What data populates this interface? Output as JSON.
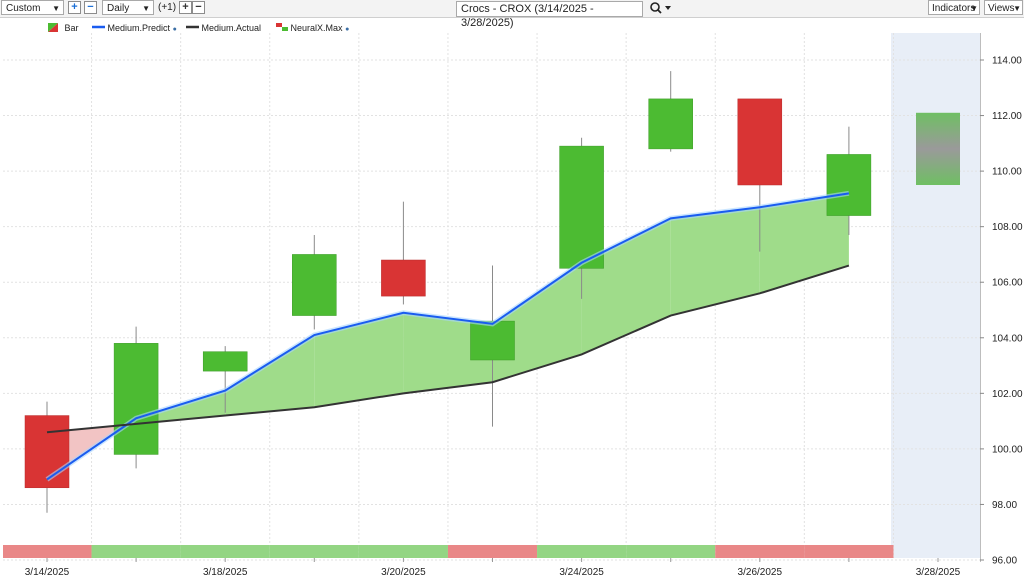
{
  "toolbar": {
    "period_select": "Custom",
    "interval_select": "Daily",
    "offset_label": "(+1)",
    "plus_symbol": "+",
    "minus_symbol": "−",
    "title": "Crocs - CROX (3/14/2025 - 3/28/2025)",
    "indicators_label": "Indicators",
    "views_label": "Views",
    "search_icon": "magnifier-icon",
    "dropdown_icon": "chevron-down-icon"
  },
  "legend": {
    "bar": "Bar",
    "predict": "Medium.Predict",
    "actual": "Medium.Actual",
    "neuralx": "NeuralX.Max"
  },
  "colors": {
    "up": "#4cbb32",
    "down": "#d93434",
    "predict": "#1a5cf0",
    "actual": "#333333",
    "fill_up": "#9fdc8a",
    "fill_down": "#f2c4c4",
    "forecast_bg": "#e8eef7",
    "strip_up": "#93d583",
    "strip_down": "#e98787"
  },
  "chart_data": {
    "type": "candlestick",
    "title": "Crocs - CROX (3/14/2025 - 3/28/2025)",
    "ylim": [
      96,
      115
    ],
    "y_ticks": [
      "96.00",
      "98.00",
      "100.00",
      "102.00",
      "104.00",
      "106.00",
      "108.00",
      "110.00",
      "112.00",
      "114.00"
    ],
    "x_tick_labels": [
      "3/14/2025",
      "3/18/2025",
      "3/20/2025",
      "3/24/2025",
      "3/26/2025",
      "3/28/2025"
    ],
    "candles": [
      {
        "open": 101.2,
        "close": 98.6,
        "high": 101.7,
        "low": 97.7
      },
      {
        "open": 99.8,
        "close": 103.8,
        "high": 104.4,
        "low": 99.3
      },
      {
        "open": 102.8,
        "close": 103.5,
        "high": 103.7,
        "low": 101.3
      },
      {
        "open": 104.8,
        "close": 107.0,
        "high": 107.7,
        "low": 104.3
      },
      {
        "open": 106.8,
        "close": 105.5,
        "high": 108.9,
        "low": 105.2
      },
      {
        "open": 103.2,
        "close": 104.6,
        "high": 106.6,
        "low": 100.8
      },
      {
        "open": 106.5,
        "close": 110.9,
        "high": 111.2,
        "low": 105.4
      },
      {
        "open": 110.8,
        "close": 112.6,
        "high": 113.6,
        "low": 110.7
      },
      {
        "open": 112.6,
        "close": 109.5,
        "high": 112.6,
        "low": 107.1
      },
      {
        "open": 108.4,
        "close": 110.6,
        "high": 111.6,
        "low": 107.7
      }
    ],
    "forecast_bar": {
      "low": 109.5,
      "high": 112.1
    },
    "series": [
      {
        "name": "Medium.Predict",
        "values": [
          98.9,
          101.1,
          102.1,
          104.1,
          104.9,
          104.5,
          106.7,
          108.3,
          108.7,
          109.2
        ]
      },
      {
        "name": "Medium.Actual",
        "values": [
          100.6,
          100.9,
          101.2,
          101.5,
          102.0,
          102.4,
          103.4,
          104.8,
          105.6,
          106.6
        ]
      }
    ],
    "signal_strip": [
      "down",
      "up",
      "up",
      "up",
      "up",
      "down",
      "up",
      "up",
      "down",
      "down"
    ]
  }
}
